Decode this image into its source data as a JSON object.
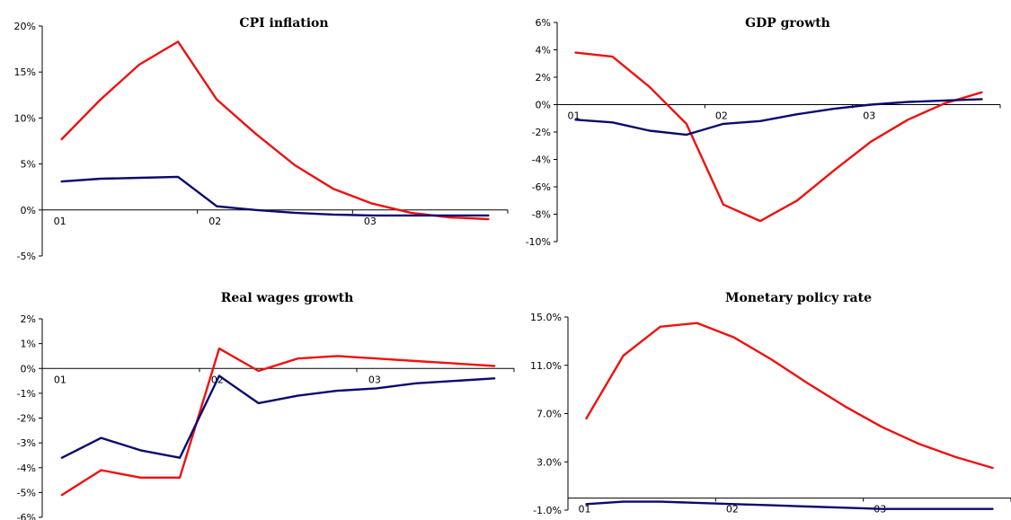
{
  "colors": {
    "red_series": "#ee1111",
    "navy_series": "#0a0a6e"
  },
  "chart_data": [
    {
      "type": "line",
      "title": "CPI inflation",
      "x_tick_labels": [
        "01",
        "02",
        "03"
      ],
      "y_tick_labels": [
        "20%",
        "15%",
        "10%",
        "5%",
        "0%",
        "-5%"
      ],
      "ylim": [
        -5,
        20
      ],
      "x": [
        1,
        2,
        3,
        4,
        5,
        6,
        7,
        8,
        9,
        10,
        11,
        12
      ],
      "series": [
        {
          "color": "#ee1111",
          "values": [
            7.7,
            12.0,
            15.8,
            18.3,
            12.0,
            8.3,
            4.9,
            2.3,
            0.7,
            -0.3,
            -0.8,
            -1.0
          ]
        },
        {
          "color": "#0a0a6e",
          "values": [
            3.1,
            3.4,
            3.5,
            3.6,
            0.4,
            0.0,
            -0.3,
            -0.5,
            -0.6,
            -0.6,
            -0.6,
            -0.6
          ]
        }
      ]
    },
    {
      "type": "line",
      "title": "GDP growth",
      "x_tick_labels": [
        "01",
        "02",
        "03"
      ],
      "y_tick_labels": [
        "6%",
        "4%",
        "2%",
        "0%",
        "-2%",
        "-4%",
        "-6%",
        "-8%",
        "-10%"
      ],
      "ylim": [
        -10,
        6
      ],
      "x": [
        1,
        2,
        3,
        4,
        5,
        6,
        7,
        8,
        9,
        10,
        11,
        12
      ],
      "series": [
        {
          "color": "#ee1111",
          "values": [
            3.8,
            3.5,
            1.3,
            -1.4,
            -7.3,
            -8.5,
            -7.0,
            -4.8,
            -2.7,
            -1.1,
            0.1,
            0.9
          ]
        },
        {
          "color": "#0a0a6e",
          "values": [
            -1.1,
            -1.3,
            -1.9,
            -2.2,
            -1.4,
            -1.2,
            -0.7,
            -0.3,
            0.0,
            0.2,
            0.3,
            0.4
          ]
        }
      ]
    },
    {
      "type": "line",
      "title": "Real wages growth",
      "x_tick_labels": [
        "01",
        "02",
        "03"
      ],
      "y_tick_labels": [
        "2%",
        "1%",
        "0%",
        "-1%",
        "-2%",
        "-3%",
        "-4%",
        "-5%",
        "-6%"
      ],
      "ylim": [
        -6,
        2
      ],
      "x": [
        1,
        2,
        3,
        4,
        5,
        6,
        7,
        8,
        9,
        10,
        11,
        12
      ],
      "series": [
        {
          "color": "#ee1111",
          "values": [
            -5.1,
            -4.1,
            -4.4,
            -4.4,
            0.8,
            -0.1,
            0.4,
            0.5,
            0.4,
            0.3,
            0.2,
            0.1
          ]
        },
        {
          "color": "#0a0a6e",
          "values": [
            -3.6,
            -2.8,
            -3.3,
            -3.6,
            -0.3,
            -1.4,
            -1.1,
            -0.9,
            -0.8,
            -0.6,
            -0.5,
            -0.4
          ]
        }
      ]
    },
    {
      "type": "line",
      "title": "Monetary policy rate",
      "x_tick_labels": [
        "01",
        "02",
        "03"
      ],
      "y_tick_labels": [
        "15.0%",
        "11.0%",
        "7.0%",
        "3.0%",
        "-1.0%"
      ],
      "ylim": [
        -1,
        15
      ],
      "x": [
        1,
        2,
        3,
        4,
        5,
        6,
        7,
        8,
        9,
        10,
        11,
        12
      ],
      "series": [
        {
          "color": "#ee1111",
          "values": [
            6.6,
            11.8,
            14.2,
            14.5,
            13.3,
            11.5,
            9.5,
            7.6,
            5.9,
            4.5,
            3.4,
            2.5
          ]
        },
        {
          "color": "#0a0a6e",
          "values": [
            -0.5,
            -0.3,
            -0.3,
            -0.4,
            -0.5,
            -0.6,
            -0.7,
            -0.8,
            -0.9,
            -0.9,
            -0.9,
            -0.9
          ]
        }
      ]
    }
  ]
}
